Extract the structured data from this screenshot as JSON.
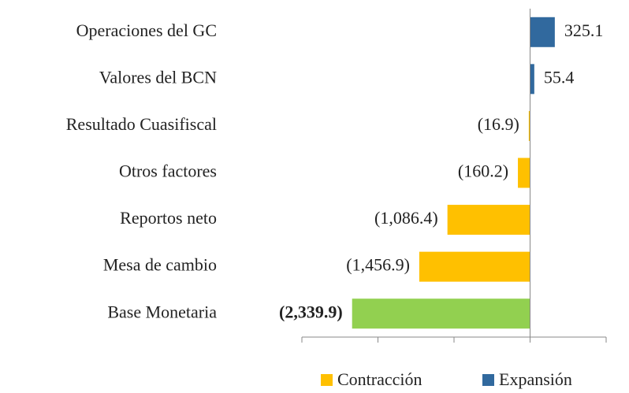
{
  "chart_data": {
    "type": "hbar",
    "categories": [
      "Operaciones del GC",
      "Valores del BCN",
      "Resultado Cuasifiscal",
      "Otros factores",
      "Reportos neto",
      "Mesa de cambio",
      "Base Monetaria"
    ],
    "values": [
      325.1,
      55.4,
      -16.9,
      -160.2,
      -1086.4,
      -1456.9,
      -2339.9
    ],
    "value_labels": [
      "325.1",
      "55.4",
      "(16.9)",
      "(160.2)",
      "(1,086.4)",
      "(1,456.9)",
      "(2,339.9)"
    ],
    "colors": [
      "#31699E",
      "#31699E",
      "#FFC000",
      "#FFC000",
      "#FFC000",
      "#FFC000",
      "#92D050"
    ],
    "bold_value_labels": [
      false,
      false,
      false,
      false,
      false,
      false,
      true
    ],
    "xlim": [
      -3000,
      1000
    ],
    "xticks": [
      -3000,
      -2000,
      -1000,
      0,
      1000
    ],
    "legend": [
      {
        "name": "Contracción",
        "color": "#FFC000"
      },
      {
        "name": "Expansión",
        "color": "#31699E"
      }
    ],
    "legend_position": "bottom"
  }
}
